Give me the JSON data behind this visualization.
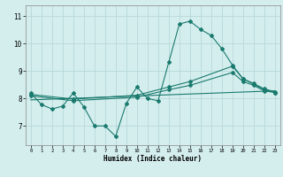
{
  "title": "",
  "xlabel": "Humidex (Indice chaleur)",
  "xlim": [
    -0.5,
    23.5
  ],
  "ylim": [
    6.3,
    11.4
  ],
  "yticks": [
    7,
    8,
    9,
    10,
    11
  ],
  "xticks": [
    0,
    1,
    2,
    3,
    4,
    5,
    6,
    7,
    8,
    9,
    10,
    11,
    12,
    13,
    14,
    15,
    16,
    17,
    18,
    19,
    20,
    21,
    22,
    23
  ],
  "bg_color": "#d4eeee",
  "grid_color": "#b8d8d8",
  "line_color": "#1a7a6e",
  "line1_x": [
    0,
    1,
    2,
    3,
    4,
    5,
    6,
    7,
    8,
    9,
    10,
    11,
    12,
    13,
    14,
    15,
    16,
    17,
    18,
    19,
    20,
    21,
    22,
    23
  ],
  "line1_y": [
    8.2,
    7.78,
    7.62,
    7.72,
    8.2,
    7.7,
    7.0,
    7.0,
    6.62,
    7.82,
    8.42,
    8.0,
    7.92,
    9.32,
    10.72,
    10.82,
    10.52,
    10.3,
    9.82,
    9.22,
    8.72,
    8.52,
    8.32,
    8.22
  ],
  "line2_x": [
    0,
    4,
    10,
    13,
    15,
    19,
    20,
    21,
    22,
    23
  ],
  "line2_y": [
    8.15,
    7.98,
    8.12,
    8.42,
    8.62,
    9.18,
    8.72,
    8.55,
    8.35,
    8.25
  ],
  "line3_x": [
    0,
    4,
    10,
    13,
    15,
    19,
    20,
    21,
    22,
    23
  ],
  "line3_y": [
    8.1,
    7.92,
    8.05,
    8.32,
    8.48,
    8.95,
    8.62,
    8.48,
    8.28,
    8.22
  ],
  "line4_x": [
    0,
    23
  ],
  "line4_y": [
    7.95,
    8.28
  ]
}
